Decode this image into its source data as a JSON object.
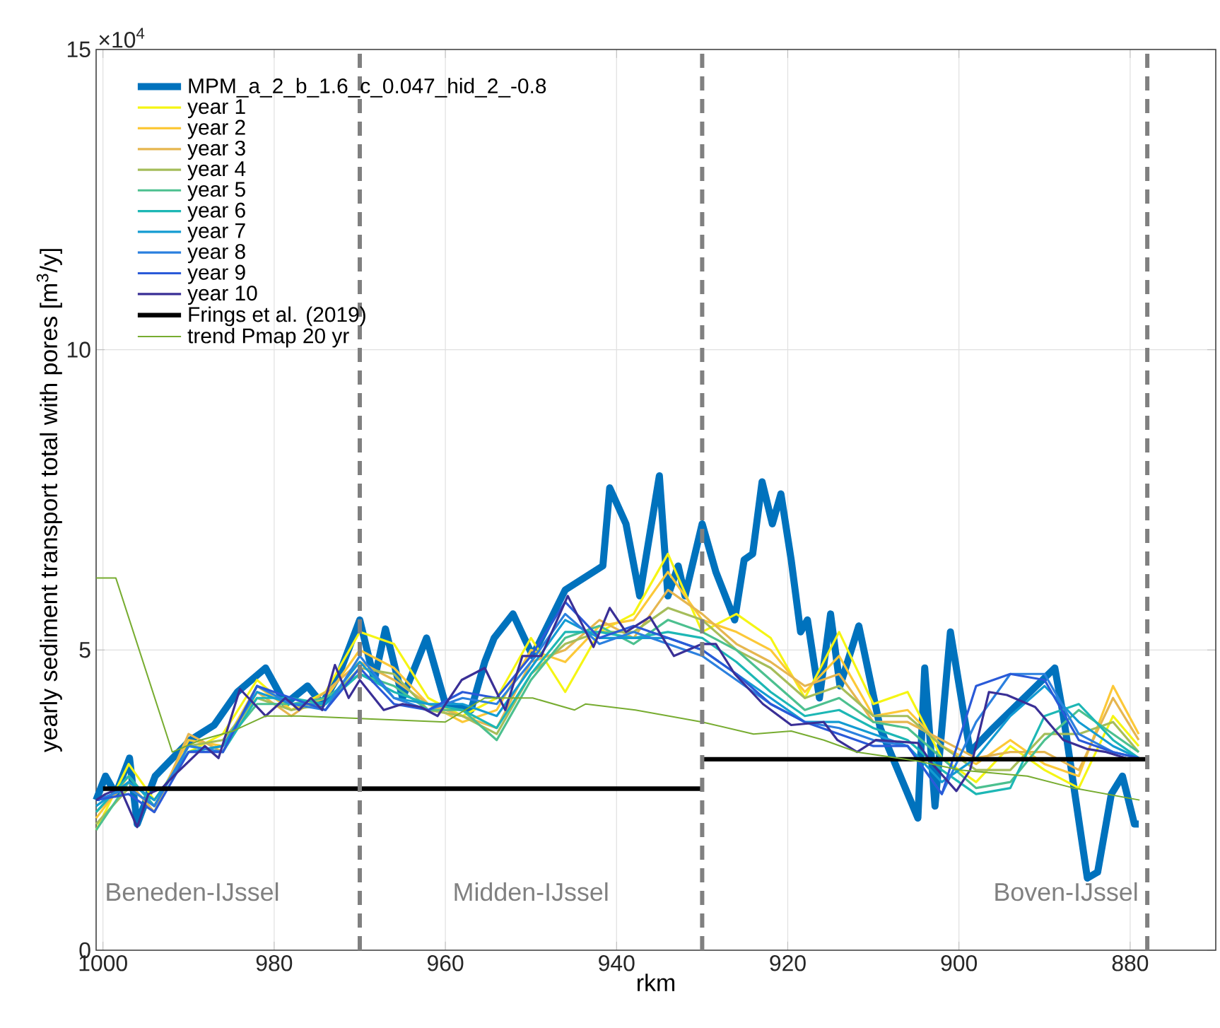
{
  "chart_data": {
    "type": "line",
    "xlabel": "rkm",
    "ylabel": "yearly sediment transport total with pores [m$^{3}$/y]",
    "xlim": [
      1000.8,
      870
    ],
    "xticks": [
      1000,
      980,
      960,
      940,
      920,
      900,
      880
    ],
    "ylim": [
      0,
      15
    ],
    "yticks": [
      0,
      5,
      10,
      15
    ],
    "grid": true,
    "legend": "top left",
    "series": [
      {
        "name": "MPM_a_2_b_1.6_c_0.047_hid_2_-0.8",
        "color": "#0072bd",
        "x": [
          1000.8,
          999.7,
          998.5,
          996.9,
          996,
          993.9,
          989.8,
          987,
          984.3,
          981,
          978.7,
          976.1,
          974.4,
          972.4,
          970,
          968.3,
          967,
          965,
          962.2,
          960,
          957,
          955.4,
          954.3,
          952.1,
          949.8,
          946,
          941.6,
          940.8,
          938.9,
          937.3,
          935,
          934,
          932.8,
          932,
          930,
          928.4,
          926.2,
          925.1,
          924.1,
          923,
          921.8,
          920.8,
          919.6,
          918.5,
          917.7,
          916.3,
          915,
          913.9,
          911.7,
          909.2,
          904.8,
          904,
          902.8,
          901,
          898.7,
          896,
          888.8,
          887.8,
          885,
          883.8,
          882.2,
          880.9,
          879.5,
          879
        ],
        "values": [
          2.5,
          2.9,
          2.6,
          3.2,
          2.1,
          2.9,
          3.5,
          3.75,
          4.3,
          4.7,
          4.1,
          4.4,
          4.1,
          4.6,
          5.5,
          4.5,
          5.35,
          4.2,
          5.2,
          4.1,
          4.0,
          4.8,
          5.2,
          5.6,
          4.9,
          6.0,
          6.4,
          7.7,
          7.1,
          5.9,
          7.9,
          5.9,
          6.4,
          5.9,
          7.1,
          6.3,
          5.5,
          6.5,
          6.6,
          7.8,
          7.1,
          7.6,
          6.5,
          5.3,
          5.5,
          4.2,
          5.6,
          4.4,
          5.4,
          3.7,
          2.2,
          4.7,
          2.4,
          5.3,
          3.3,
          3.7,
          4.7,
          3.9,
          1.2,
          1.3,
          2.6,
          2.9,
          2.1,
          2.1
        ]
      },
      {
        "name": "year 1",
        "color": "#f5f514",
        "x": [
          1000.8,
          997,
          994,
          990,
          986,
          982,
          978,
          974,
          970,
          966,
          962,
          958,
          954,
          950,
          946,
          942,
          938,
          934,
          930,
          926,
          922,
          918,
          914,
          910,
          906,
          902,
          898,
          894,
          890,
          886,
          882,
          879
        ],
        "values": [
          2.0,
          3.1,
          2.5,
          3.3,
          3.6,
          4.5,
          4.0,
          4.3,
          5.3,
          5.1,
          4.2,
          3.9,
          4.2,
          5.2,
          4.3,
          5.3,
          5.6,
          6.6,
          5.3,
          5.6,
          5.2,
          4.2,
          5.3,
          4.1,
          4.3,
          3.2,
          2.8,
          3.4,
          3.0,
          2.7,
          3.9,
          3.4
        ]
      },
      {
        "name": "year 2",
        "color": "#fcc838",
        "x": [
          1000.8,
          997,
          994,
          990,
          986,
          982,
          978,
          974,
          970,
          966,
          962,
          958,
          954,
          950,
          946,
          942,
          938,
          934,
          930,
          926,
          922,
          918,
          914,
          910,
          906,
          902,
          898,
          894,
          890,
          886,
          882,
          879
        ],
        "values": [
          2.2,
          2.9,
          2.4,
          3.5,
          3.4,
          4.4,
          4.0,
          4.2,
          5.0,
          4.7,
          4.1,
          3.8,
          4.0,
          5.0,
          4.8,
          5.4,
          5.5,
          6.3,
          5.5,
          5.3,
          5.0,
          4.3,
          4.9,
          3.9,
          4.0,
          3.4,
          3.1,
          3.5,
          3.1,
          2.9,
          4.4,
          3.6
        ]
      },
      {
        "name": "year 3",
        "color": "#e6b64f",
        "x": [
          1000.8,
          997,
          994,
          990,
          986,
          982,
          978,
          974,
          970,
          966,
          962,
          958,
          954,
          950,
          946,
          942,
          938,
          934,
          930,
          926,
          922,
          918,
          914,
          910,
          906,
          902,
          898,
          894,
          890,
          886,
          882,
          879
        ],
        "values": [
          2.3,
          2.8,
          2.3,
          3.6,
          3.3,
          4.3,
          3.9,
          4.3,
          4.8,
          4.5,
          4.1,
          3.9,
          3.7,
          4.8,
          5.0,
          5.5,
          5.2,
          6.0,
          5.6,
          5.1,
          4.8,
          4.4,
          4.6,
          3.8,
          3.8,
          3.5,
          3.2,
          3.3,
          3.3,
          3.0,
          4.2,
          3.5
        ]
      },
      {
        "name": "year 4",
        "color": "#a5bd5a",
        "x": [
          1000.8,
          997,
          994,
          990,
          986,
          982,
          978,
          974,
          970,
          966,
          962,
          958,
          954,
          950,
          946,
          942,
          938,
          934,
          930,
          926,
          922,
          918,
          914,
          910,
          906,
          902,
          898,
          894,
          890,
          886,
          882,
          879
        ],
        "values": [
          2.1,
          2.7,
          2.4,
          3.4,
          3.5,
          4.2,
          4.0,
          4.1,
          4.7,
          4.6,
          4.0,
          3.9,
          3.6,
          4.6,
          5.1,
          5.3,
          5.3,
          5.7,
          5.5,
          5.0,
          4.7,
          4.2,
          4.4,
          3.9,
          3.9,
          3.4,
          3.0,
          3.0,
          3.6,
          3.6,
          3.8,
          3.3
        ]
      },
      {
        "name": "year 5",
        "color": "#4cc08f",
        "x": [
          1000.8,
          997,
          994,
          990,
          986,
          982,
          978,
          974,
          970,
          966,
          962,
          958,
          954,
          950,
          946,
          942,
          938,
          934,
          930,
          926,
          922,
          918,
          914,
          910,
          906,
          902,
          898,
          894,
          890,
          886,
          882,
          879
        ],
        "values": [
          2.0,
          2.8,
          2.5,
          3.3,
          3.4,
          4.1,
          4.1,
          4.2,
          4.6,
          4.4,
          4.0,
          4.0,
          3.5,
          4.5,
          5.2,
          5.4,
          5.1,
          5.5,
          5.3,
          5.0,
          4.5,
          4.0,
          4.2,
          3.8,
          3.7,
          3.2,
          2.7,
          2.8,
          3.5,
          4.0,
          3.6,
          3.3
        ]
      },
      {
        "name": "year 6",
        "color": "#1db7b5",
        "x": [
          1000.8,
          997,
          994,
          990,
          986,
          982,
          978,
          974,
          970,
          966,
          962,
          958,
          954,
          950,
          946,
          942,
          938,
          934,
          930,
          926,
          922,
          918,
          914,
          910,
          906,
          902,
          898,
          894,
          890,
          886,
          882,
          879
        ],
        "values": [
          2.3,
          2.9,
          2.4,
          3.4,
          3.3,
          4.2,
          4.2,
          4.1,
          4.6,
          4.3,
          4.1,
          4.0,
          3.7,
          4.6,
          5.3,
          5.3,
          5.2,
          5.3,
          5.2,
          4.8,
          4.3,
          3.9,
          4.0,
          3.7,
          3.5,
          3.0,
          2.6,
          2.7,
          3.9,
          4.1,
          3.5,
          3.2
        ]
      },
      {
        "name": "year 7",
        "color": "#139bd2",
        "x": [
          1000.8,
          997,
          994,
          990,
          986,
          982,
          978,
          974,
          970,
          966,
          962,
          958,
          954,
          950,
          946,
          942,
          938,
          934,
          930,
          926,
          922,
          918,
          914,
          910,
          906,
          902,
          898,
          894,
          890,
          886,
          882,
          879
        ],
        "values": [
          2.4,
          2.8,
          2.5,
          3.3,
          3.4,
          4.3,
          4.1,
          4.1,
          4.8,
          4.2,
          4.1,
          4.1,
          3.9,
          4.7,
          5.5,
          5.2,
          5.2,
          5.2,
          5.0,
          4.6,
          4.2,
          3.8,
          3.8,
          3.6,
          3.4,
          2.8,
          3.2,
          3.9,
          4.4,
          3.8,
          3.4,
          3.2
        ]
      },
      {
        "name": "year 8",
        "color": "#2b80df",
        "x": [
          1000.8,
          997,
          994,
          990,
          986,
          982,
          978,
          974,
          970,
          966,
          962,
          958,
          954,
          950,
          946,
          942,
          938,
          934,
          930,
          926,
          922,
          918,
          914,
          910,
          906,
          902,
          898,
          894,
          890,
          886,
          882,
          879
        ],
        "values": [
          2.5,
          2.7,
          2.4,
          3.4,
          3.3,
          4.4,
          4.1,
          4.0,
          4.9,
          4.2,
          4.0,
          4.2,
          4.1,
          4.8,
          5.6,
          5.1,
          5.3,
          5.1,
          4.9,
          4.5,
          4.1,
          3.8,
          3.7,
          3.5,
          3.4,
          2.6,
          3.8,
          4.6,
          4.6,
          3.6,
          3.3,
          3.2
        ]
      },
      {
        "name": "year 9",
        "color": "#2a5ad8",
        "x": [
          1000.8,
          997,
          994,
          990,
          986,
          982,
          978,
          974,
          970,
          966,
          962,
          958,
          954,
          950,
          946,
          942,
          938,
          934,
          930,
          926,
          922,
          918,
          914,
          910,
          906,
          902,
          898,
          894,
          890,
          886,
          882,
          879
        ],
        "values": [
          2.5,
          2.6,
          2.3,
          3.3,
          3.3,
          4.4,
          4.2,
          4.0,
          4.7,
          4.1,
          4.0,
          4.3,
          4.2,
          4.9,
          5.8,
          5.2,
          5.4,
          5.2,
          5.0,
          4.6,
          4.1,
          3.8,
          3.6,
          3.4,
          3.4,
          2.6,
          4.4,
          4.6,
          4.5,
          3.5,
          3.3,
          3.2
        ]
      },
      {
        "name": "year 10",
        "color": "#3a2f96",
        "x": [
          1000.8,
          999.7,
          998,
          996,
          994.7,
          993.1,
          991.4,
          988.1,
          986.5,
          984,
          981,
          978.7,
          977.1,
          975.7,
          974.4,
          972.9,
          971.3,
          970,
          967.2,
          965,
          962.9,
          960.9,
          958.1,
          955.4,
          953,
          951,
          948.8,
          945.7,
          942.7,
          940.8,
          938.9,
          936.1,
          933.3,
          930,
          928.4,
          926.2,
          922.9,
          919.6,
          915.8,
          914.2,
          911.9,
          909.7,
          904.8,
          903.1,
          900.3,
          898.7,
          896.5,
          894.4,
          891.1,
          887.8,
          885,
          882.8,
          880.5
        ],
        "values": [
          2.5,
          2.6,
          2.7,
          2.05,
          2.6,
          2.7,
          2.95,
          3.4,
          3.2,
          4.35,
          3.9,
          4.2,
          4.0,
          4.2,
          4.0,
          4.75,
          4.2,
          4.5,
          4.0,
          4.1,
          4.05,
          3.9,
          4.5,
          4.7,
          4.0,
          4.9,
          4.9,
          5.9,
          5.05,
          5.7,
          5.3,
          5.55,
          4.9,
          5.1,
          5.1,
          4.6,
          4.1,
          3.75,
          3.8,
          3.5,
          3.3,
          3.5,
          3.45,
          3.1,
          2.65,
          3.0,
          4.3,
          4.25,
          4.05,
          3.5,
          3.35,
          3.3,
          3.2
        ]
      },
      {
        "name": "Frings et al. (2019)",
        "color": "#000000",
        "x": [
          1000,
          930,
          null,
          930,
          878
        ],
        "values": [
          2.69,
          2.69,
          null,
          3.18,
          3.18
        ]
      },
      {
        "name": "trend Pmap 20 yr",
        "color": "#77ac30",
        "x": [
          1000.8,
          999.2,
          998.5,
          991.9,
          988.6,
          984.8,
          981,
          977,
          960,
          955.4,
          949.8,
          944.9,
          943.6,
          937.8,
          930,
          924,
          919.6,
          915.8,
          911.9,
          904.8,
          899.8,
          892,
          886.6,
          878.9
        ],
        "values": [
          6.2,
          6.2,
          6.2,
          3.3,
          3.5,
          3.65,
          3.9,
          3.9,
          3.8,
          4.2,
          4.2,
          4.0,
          4.1,
          4.0,
          3.8,
          3.6,
          3.65,
          3.5,
          3.3,
          3.15,
          3.0,
          2.9,
          2.7,
          2.5
        ]
      }
    ],
    "ref_lines": [
      {
        "axis": "x",
        "value": 970,
        "color": "#808080",
        "line_style": "dashed"
      },
      {
        "axis": "x",
        "value": 930,
        "color": "#808080",
        "line_style": "dashed"
      },
      {
        "axis": "x",
        "value": 878,
        "color": "#808080",
        "line_style": "dashed"
      }
    ],
    "annotations": [
      "×10$^{4}$",
      "Beneden-IJssel",
      "Midden-IJssel",
      "Boven-IJssel"
    ]
  }
}
